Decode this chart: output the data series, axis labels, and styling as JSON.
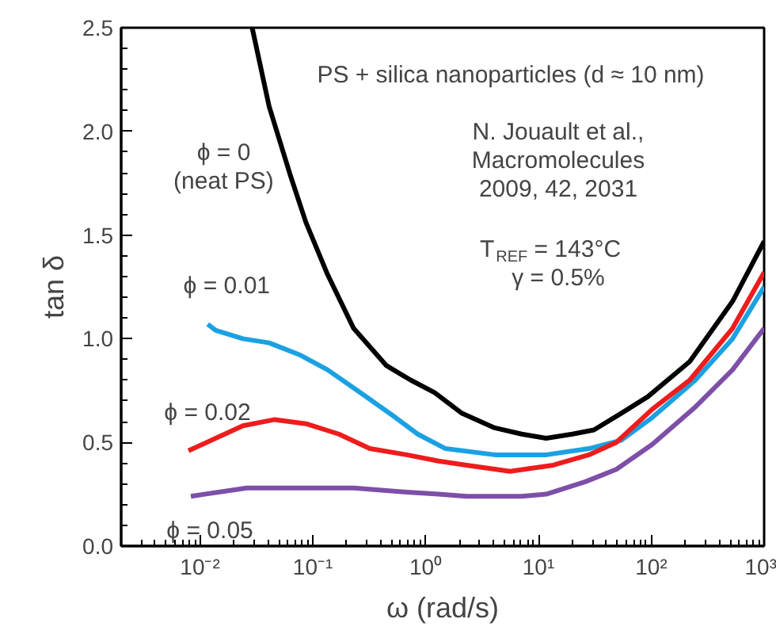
{
  "chart_data": {
    "type": "line",
    "xlabel": "ω (rad/s)",
    "ylabel": "tan δ",
    "log": "x",
    "grid": false,
    "legend": false,
    "line_style": "solid",
    "marker": "none",
    "xlim": [
      0.002,
      1000
    ],
    "ylim": [
      0,
      2.5
    ],
    "xticks": [
      {
        "value": 0.01,
        "label": "10⁻²"
      },
      {
        "value": 0.1,
        "label": "10⁻¹"
      },
      {
        "value": 1,
        "label": "10⁰"
      },
      {
        "value": 10,
        "label": "10¹"
      },
      {
        "value": 100,
        "label": "10²"
      },
      {
        "value": 1000,
        "label": "10³"
      }
    ],
    "yticks": [
      {
        "value": 0,
        "label": "0.0"
      },
      {
        "value": 0.5,
        "label": "0.5"
      },
      {
        "value": 1,
        "label": "1.0"
      },
      {
        "value": 1.5,
        "label": "1.5"
      },
      {
        "value": 2,
        "label": "2.0"
      },
      {
        "value": 2.5,
        "label": "2.5"
      }
    ],
    "series": [
      {
        "name": "ϕ = 0\n(neat PS)",
        "color": "#000000",
        "x": [
          0.029,
          0.041,
          0.063,
          0.087,
          0.135,
          0.23,
          0.45,
          0.74,
          1.2,
          2.1,
          4.1,
          7.1,
          11.7,
          20,
          31,
          54,
          93,
          219,
          525,
          1000
        ],
        "values": [
          2.5,
          2.12,
          1.79,
          1.56,
          1.31,
          1.05,
          0.87,
          0.8,
          0.74,
          0.64,
          0.57,
          0.54,
          0.52,
          0.54,
          0.56,
          0.64,
          0.72,
          0.89,
          1.18,
          1.47
        ]
      },
      {
        "name": "ϕ = 0.01",
        "color": "#1ba1e2",
        "x": [
          0.0117,
          0.0138,
          0.024,
          0.041,
          0.078,
          0.135,
          0.28,
          0.54,
          0.85,
          1.5,
          4.1,
          11.7,
          28,
          54,
          102,
          245,
          525,
          1000
        ],
        "values": [
          1.07,
          1.04,
          1.0,
          0.98,
          0.92,
          0.85,
          0.73,
          0.62,
          0.54,
          0.47,
          0.44,
          0.44,
          0.47,
          0.51,
          0.62,
          0.8,
          1.0,
          1.25
        ]
      },
      {
        "name": "ϕ = 0.02",
        "color": "#ee1c1c",
        "x": [
          0.0079,
          0.0126,
          0.024,
          0.046,
          0.087,
          0.17,
          0.32,
          0.68,
          1.3,
          2.3,
          5.6,
          13.5,
          28,
          49,
          102,
          219,
          525,
          1000
        ],
        "values": [
          0.46,
          0.51,
          0.58,
          0.61,
          0.59,
          0.54,
          0.47,
          0.44,
          0.41,
          0.39,
          0.36,
          0.39,
          0.44,
          0.5,
          0.66,
          0.8,
          1.05,
          1.32
        ]
      },
      {
        "name": "ϕ = 0.05",
        "color": "#7d4fa8",
        "x": [
          0.0083,
          0.026,
          0.078,
          0.23,
          0.68,
          1.3,
          2.3,
          7.1,
          11.7,
          26,
          49,
          102,
          245,
          525,
          1000
        ],
        "values": [
          0.24,
          0.28,
          0.28,
          0.28,
          0.26,
          0.25,
          0.24,
          0.24,
          0.25,
          0.31,
          0.37,
          0.49,
          0.67,
          0.85,
          1.05
        ]
      }
    ],
    "annotations": [
      "PS + silica nanoparticles (d ≈ 10 nm)",
      "N. Jouault et al.,\nMacromolecules\n2009, 42, 2031",
      "T$_{REF}$ = 143°C\nγ = 0.5%"
    ]
  }
}
